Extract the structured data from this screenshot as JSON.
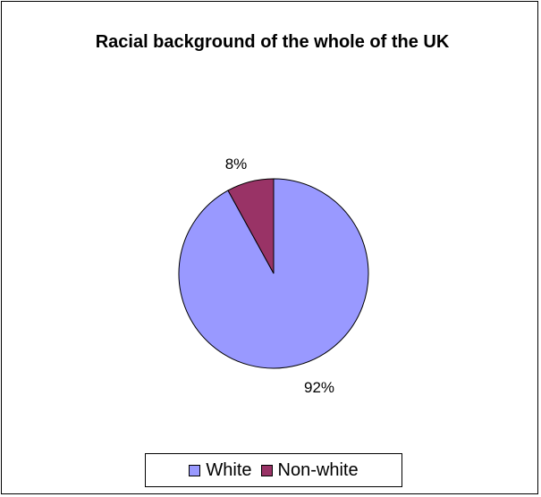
{
  "chart_data": {
    "type": "pie",
    "title": "Racial background of the whole of the UK",
    "categories": [
      "White",
      "Non-white"
    ],
    "values": [
      92,
      8
    ],
    "data_labels": [
      "92%",
      "8%"
    ],
    "colors": [
      "#9999ff",
      "#993366"
    ],
    "legend_position": "bottom"
  }
}
